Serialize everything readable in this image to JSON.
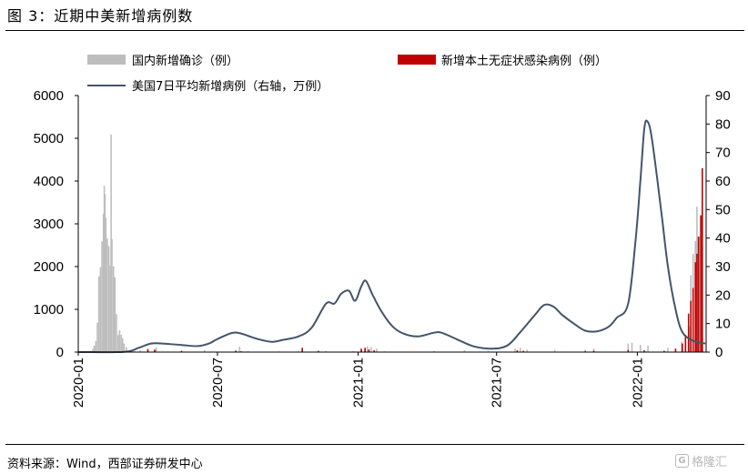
{
  "header": {
    "title": "图 3：近期中美新增病例数"
  },
  "footer": {
    "source": "资料来源：Wind，西部证券研发中心",
    "watermark": "格隆汇",
    "watermark_glyph": "G"
  },
  "colors": {
    "china_confirmed": "#bdbdbd",
    "china_asymptomatic": "#c00000",
    "us_line": "#44546a",
    "axis": "#000000"
  },
  "chart_data": {
    "type": "bar",
    "title": "",
    "legend": {
      "placement": "top",
      "entries": [
        "国内新增确诊（例）",
        "新增本土无症状感染病例（例）",
        "美国7日平均新增病例（右轴，万例）"
      ]
    },
    "grid": false,
    "x_ticks": [
      "2020-01",
      "2020-07",
      "2021-01",
      "2021-07",
      "2022-01"
    ],
    "x_range": [
      "2020-01-01",
      "2022-04-01"
    ],
    "left_axis": {
      "ylim": [
        0,
        6000
      ],
      "ticks": [
        "0",
        "1000",
        "2000",
        "3000",
        "4000",
        "5000",
        "6000"
      ]
    },
    "right_axis": {
      "ylim": [
        0,
        90
      ],
      "ticks": [
        "0",
        "10",
        "20",
        "30",
        "40",
        "50",
        "60",
        "70",
        "80",
        "90"
      ]
    },
    "series": [
      {
        "name": "国内新增确诊（例）",
        "kind": "bar",
        "axis": "left",
        "points": [
          [
            "2020-01-20",
            77
          ],
          [
            "2020-01-22",
            149
          ],
          [
            "2020-01-24",
            259
          ],
          [
            "2020-01-26",
            688
          ],
          [
            "2020-01-28",
            1771
          ],
          [
            "2020-01-30",
            1982
          ],
          [
            "2020-02-01",
            2590
          ],
          [
            "2020-02-03",
            3235
          ],
          [
            "2020-02-04",
            3887
          ],
          [
            "2020-02-05",
            3694
          ],
          [
            "2020-02-06",
            3143
          ],
          [
            "2020-02-08",
            2656
          ],
          [
            "2020-02-10",
            2478
          ],
          [
            "2020-02-12",
            2015
          ],
          [
            "2020-02-13",
            5090
          ],
          [
            "2020-02-14",
            2641
          ],
          [
            "2020-02-16",
            2009
          ],
          [
            "2020-02-18",
            1749
          ],
          [
            "2020-02-20",
            889
          ],
          [
            "2020-02-22",
            397
          ],
          [
            "2020-02-24",
            508
          ],
          [
            "2020-02-26",
            406
          ],
          [
            "2020-02-28",
            327
          ],
          [
            "2020-03-01",
            202
          ],
          [
            "2020-03-04",
            119
          ],
          [
            "2020-03-08",
            40
          ],
          [
            "2020-03-15",
            20
          ],
          [
            "2020-03-22",
            40
          ],
          [
            "2020-04-01",
            35
          ],
          [
            "2020-04-12",
            108
          ],
          [
            "2020-05-01",
            10
          ],
          [
            "2020-06-14",
            49
          ],
          [
            "2020-07-25",
            46
          ],
          [
            "2020-07-30",
            127
          ],
          [
            "2020-08-10",
            20
          ],
          [
            "2020-09-20",
            15
          ],
          [
            "2020-10-15",
            20
          ],
          [
            "2020-11-20",
            25
          ],
          [
            "2020-12-25",
            20
          ],
          [
            "2021-01-05",
            50
          ],
          [
            "2021-01-10",
            100
          ],
          [
            "2021-01-13",
            138
          ],
          [
            "2021-01-18",
            118
          ],
          [
            "2021-01-25",
            80
          ],
          [
            "2021-02-05",
            20
          ],
          [
            "2021-04-10",
            30
          ],
          [
            "2021-05-20",
            40
          ],
          [
            "2021-06-20",
            30
          ],
          [
            "2021-07-25",
            80
          ],
          [
            "2021-08-01",
            100
          ],
          [
            "2021-08-10",
            60
          ],
          [
            "2021-09-15",
            50
          ],
          [
            "2021-10-25",
            60
          ],
          [
            "2021-11-05",
            80
          ],
          [
            "2021-12-20",
            200
          ],
          [
            "2021-12-25",
            220
          ],
          [
            "2022-01-05",
            170
          ],
          [
            "2022-01-15",
            150
          ],
          [
            "2022-02-10",
            100
          ],
          [
            "2022-02-28",
            240
          ],
          [
            "2022-03-05",
            300
          ],
          [
            "2022-03-10",
            600
          ],
          [
            "2022-03-12",
            1800
          ],
          [
            "2022-03-15",
            2300
          ],
          [
            "2022-03-18",
            2600
          ],
          [
            "2022-03-20",
            3400
          ],
          [
            "2022-03-23",
            2700
          ],
          [
            "2022-03-27",
            2500
          ]
        ]
      },
      {
        "name": "新增本土无症状感染病例（例）",
        "kind": "bar",
        "axis": "left",
        "points": [
          [
            "2020-04-01",
            70
          ],
          [
            "2020-04-10",
            60
          ],
          [
            "2020-05-15",
            30
          ],
          [
            "2020-07-25",
            30
          ],
          [
            "2020-08-01",
            20
          ],
          [
            "2020-10-20",
            100
          ],
          [
            "2020-11-10",
            30
          ],
          [
            "2021-01-05",
            80
          ],
          [
            "2021-01-10",
            100
          ],
          [
            "2021-01-15",
            60
          ],
          [
            "2021-01-22",
            40
          ],
          [
            "2021-05-20",
            10
          ],
          [
            "2021-07-28",
            40
          ],
          [
            "2021-08-05",
            30
          ],
          [
            "2021-10-25",
            20
          ],
          [
            "2021-11-05",
            30
          ],
          [
            "2021-12-20",
            50
          ],
          [
            "2022-01-10",
            40
          ],
          [
            "2022-02-05",
            30
          ],
          [
            "2022-02-20",
            80
          ],
          [
            "2022-03-01",
            200
          ],
          [
            "2022-03-05",
            400
          ],
          [
            "2022-03-09",
            900
          ],
          [
            "2022-03-12",
            1200
          ],
          [
            "2022-03-15",
            1500
          ],
          [
            "2022-03-18",
            2100
          ],
          [
            "2022-03-20",
            2300
          ],
          [
            "2022-03-22",
            2700
          ],
          [
            "2022-03-25",
            3200
          ],
          [
            "2022-03-27",
            4300
          ]
        ]
      },
      {
        "name": "美国7日平均新增病例（右轴，万例）",
        "kind": "line",
        "axis": "right",
        "points": [
          [
            "2020-01-01",
            0
          ],
          [
            "2020-03-01",
            0.1
          ],
          [
            "2020-03-20",
            1.5
          ],
          [
            "2020-04-05",
            3.0
          ],
          [
            "2020-04-20",
            3.0
          ],
          [
            "2020-05-15",
            2.5
          ],
          [
            "2020-06-05",
            2.1
          ],
          [
            "2020-06-20",
            3.0
          ],
          [
            "2020-07-01",
            4.6
          ],
          [
            "2020-07-20",
            6.7
          ],
          [
            "2020-08-01",
            6.5
          ],
          [
            "2020-08-20",
            4.8
          ],
          [
            "2020-09-10",
            3.6
          ],
          [
            "2020-09-25",
            4.3
          ],
          [
            "2020-10-15",
            5.5
          ],
          [
            "2020-11-01",
            8.5
          ],
          [
            "2020-11-20",
            17.0
          ],
          [
            "2020-12-01",
            17.0
          ],
          [
            "2020-12-10",
            20.5
          ],
          [
            "2020-12-20",
            21.5
          ],
          [
            "2020-12-28",
            18.0
          ],
          [
            "2021-01-05",
            23.0
          ],
          [
            "2021-01-11",
            25.0
          ],
          [
            "2021-01-20",
            20.0
          ],
          [
            "2021-02-01",
            14.0
          ],
          [
            "2021-02-15",
            9.0
          ],
          [
            "2021-03-01",
            6.5
          ],
          [
            "2021-03-20",
            5.5
          ],
          [
            "2021-04-10",
            6.8
          ],
          [
            "2021-04-20",
            6.8
          ],
          [
            "2021-05-10",
            4.5
          ],
          [
            "2021-06-01",
            2.0
          ],
          [
            "2021-06-25",
            1.2
          ],
          [
            "2021-07-15",
            2.3
          ],
          [
            "2021-08-01",
            7.0
          ],
          [
            "2021-08-20",
            13.0
          ],
          [
            "2021-09-01",
            16.5
          ],
          [
            "2021-09-13",
            16.0
          ],
          [
            "2021-09-25",
            13.0
          ],
          [
            "2021-10-10",
            10.0
          ],
          [
            "2021-10-25",
            7.5
          ],
          [
            "2021-11-10",
            7.3
          ],
          [
            "2021-11-25",
            9.0
          ],
          [
            "2021-12-05",
            12.0
          ],
          [
            "2021-12-20",
            17.0
          ],
          [
            "2021-12-30",
            40.0
          ],
          [
            "2022-01-05",
            60.0
          ],
          [
            "2022-01-10",
            78.0
          ],
          [
            "2022-01-14",
            81.0
          ],
          [
            "2022-01-20",
            75.0
          ],
          [
            "2022-02-01",
            50.0
          ],
          [
            "2022-02-10",
            30.0
          ],
          [
            "2022-02-20",
            15.0
          ],
          [
            "2022-03-01",
            7.0
          ],
          [
            "2022-03-15",
            4.0
          ],
          [
            "2022-03-31",
            3.0
          ]
        ]
      }
    ]
  }
}
